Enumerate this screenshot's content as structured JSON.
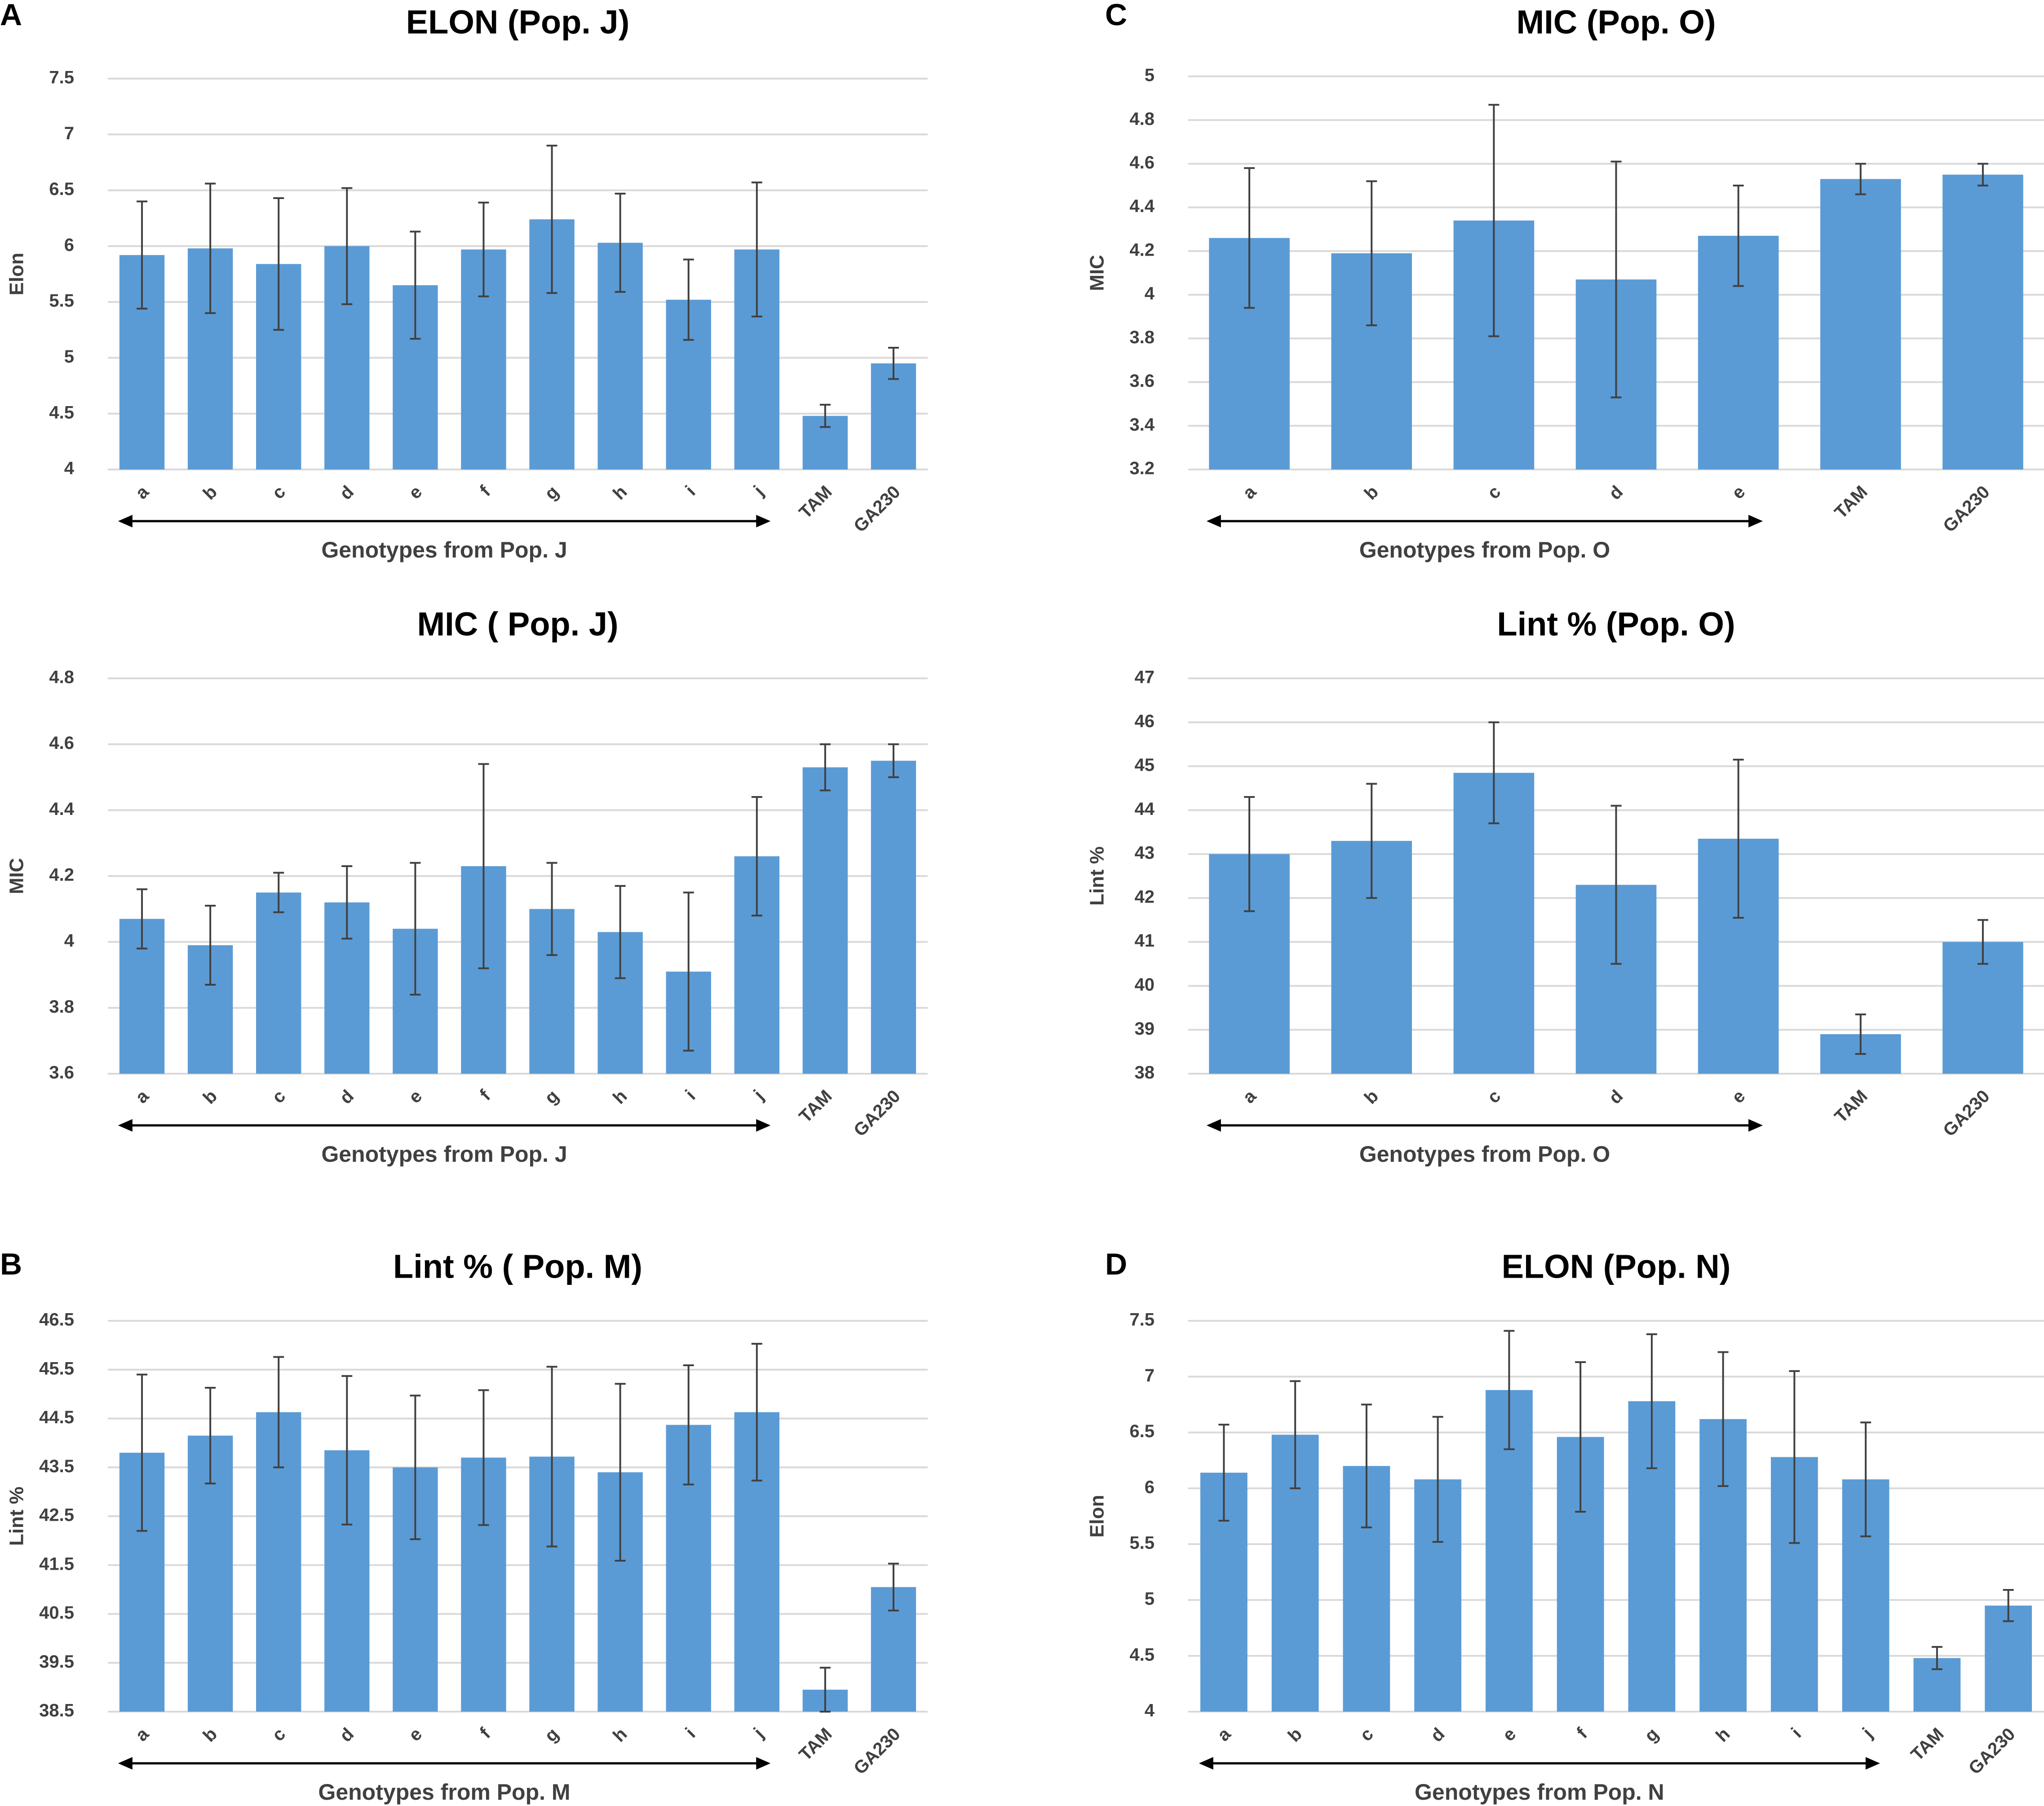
{
  "panel_labels": [
    "A",
    "B",
    "C",
    "D"
  ],
  "colors": {
    "bar": "#5B9BD5",
    "error_bar": "#404040",
    "grid": "#D9D9D9",
    "text": "#404040",
    "title": "#000000"
  },
  "chart_data": [
    {
      "type": "bar",
      "title": "ELON (Pop. J)",
      "ylabel": "Elon",
      "xlabel": "Genotypes from Pop. J",
      "categories": [
        "a",
        "b",
        "c",
        "d",
        "e",
        "f",
        "g",
        "h",
        "i",
        "j",
        "TAM",
        "GA230"
      ],
      "values": [
        5.92,
        5.98,
        5.84,
        6.0,
        5.65,
        5.97,
        6.24,
        6.03,
        5.52,
        5.97,
        4.48,
        4.95
      ],
      "errors": [
        0.48,
        0.58,
        0.59,
        0.52,
        0.48,
        0.42,
        0.66,
        0.44,
        0.36,
        0.6,
        0.1,
        0.14
      ],
      "ylim": [
        4,
        7.5
      ],
      "yticks": [
        "4",
        "4.5",
        "5",
        "5.5",
        "6",
        "6.5",
        "7",
        "7.5"
      ],
      "ytick_values": [
        4,
        4.5,
        5,
        5.5,
        6,
        6.5,
        7,
        7.5
      ],
      "arrow_span": 10
    },
    {
      "type": "bar",
      "title": "MIC ( Pop. J)",
      "ylabel": "MIC",
      "xlabel": "Genotypes from Pop. J",
      "categories": [
        "a",
        "b",
        "c",
        "d",
        "e",
        "f",
        "g",
        "h",
        "i",
        "j",
        "TAM",
        "GA230"
      ],
      "values": [
        4.07,
        3.99,
        4.15,
        4.12,
        4.04,
        4.23,
        4.1,
        4.03,
        3.91,
        4.26,
        4.53,
        4.55
      ],
      "errors": [
        0.09,
        0.12,
        0.06,
        0.11,
        0.2,
        0.31,
        0.14,
        0.14,
        0.24,
        0.18,
        0.07,
        0.05
      ],
      "ylim": [
        3.6,
        4.8
      ],
      "yticks": [
        "3.6",
        "3.8",
        "4",
        "4.2",
        "4.4",
        "4.6",
        "4.8"
      ],
      "ytick_values": [
        3.6,
        3.8,
        4.0,
        4.2,
        4.4,
        4.6,
        4.8
      ],
      "arrow_span": 10
    },
    {
      "type": "bar",
      "title": "Lint % ( Pop. M)",
      "ylabel": "Lint %",
      "xlabel": "Genotypes from Pop. M",
      "categories": [
        "a",
        "b",
        "c",
        "d",
        "e",
        "f",
        "g",
        "h",
        "i",
        "j",
        "TAM",
        "GA230"
      ],
      "values": [
        43.8,
        44.15,
        44.63,
        43.85,
        43.5,
        43.7,
        43.72,
        43.4,
        44.37,
        44.63,
        38.95,
        41.05
      ],
      "errors": [
        1.6,
        0.98,
        1.13,
        1.52,
        1.47,
        1.38,
        1.84,
        1.81,
        1.22,
        1.4,
        0.45,
        0.48
      ],
      "ylim": [
        38.5,
        46.5
      ],
      "yticks": [
        "38.5",
        "39.5",
        "40.5",
        "41.5",
        "42.5",
        "43.5",
        "44.5",
        "45.5",
        "46.5"
      ],
      "ytick_values": [
        38.5,
        39.5,
        40.5,
        41.5,
        42.5,
        43.5,
        44.5,
        45.5,
        46.5
      ],
      "arrow_span": 10
    },
    {
      "type": "bar",
      "title": "MIC (Pop. O)",
      "ylabel": "MIC",
      "xlabel": "Genotypes from Pop. O",
      "categories": [
        "a",
        "b",
        "c",
        "d",
        "e",
        "TAM",
        "GA230"
      ],
      "values": [
        4.26,
        4.19,
        4.34,
        4.07,
        4.27,
        4.53,
        4.55
      ],
      "errors": [
        0.32,
        0.33,
        0.53,
        0.54,
        0.23,
        0.07,
        0.05
      ],
      "ylim": [
        3.2,
        5
      ],
      "yticks": [
        "3.2",
        "3.4",
        "3.6",
        "3.8",
        "4",
        "4.2",
        "4.4",
        "4.6",
        "4.8",
        "5"
      ],
      "ytick_values": [
        3.2,
        3.4,
        3.6,
        3.8,
        4.0,
        4.2,
        4.4,
        4.6,
        4.8,
        5.0
      ],
      "arrow_span": 5
    },
    {
      "type": "bar",
      "title": "Lint % (Pop. O)",
      "ylabel": "Lint %",
      "xlabel": "Genotypes from Pop. O",
      "categories": [
        "a",
        "b",
        "c",
        "d",
        "e",
        "TAM",
        "GA230"
      ],
      "values": [
        43.0,
        43.3,
        44.85,
        42.3,
        43.35,
        38.9,
        41.0
      ],
      "errors": [
        1.3,
        1.3,
        1.15,
        1.8,
        1.8,
        0.45,
        0.5
      ],
      "ylim": [
        38,
        47
      ],
      "yticks": [
        "38",
        "39",
        "40",
        "41",
        "42",
        "43",
        "44",
        "45",
        "46",
        "47"
      ],
      "ytick_values": [
        38,
        39,
        40,
        41,
        42,
        43,
        44,
        45,
        46,
        47
      ],
      "arrow_span": 5
    },
    {
      "type": "bar",
      "title": "ELON (Pop. N)",
      "ylabel": "Elon",
      "xlabel": "Genotypes from Pop. N",
      "categories": [
        "a",
        "b",
        "c",
        "d",
        "e",
        "f",
        "g",
        "h",
        "i",
        "j",
        "TAM",
        "GA230"
      ],
      "values": [
        6.14,
        6.48,
        6.2,
        6.08,
        6.88,
        6.46,
        6.78,
        6.62,
        6.28,
        6.08,
        4.48,
        4.95
      ],
      "errors": [
        0.43,
        0.48,
        0.55,
        0.56,
        0.53,
        0.67,
        0.6,
        0.6,
        0.77,
        0.51,
        0.1,
        0.14
      ],
      "ylim": [
        4,
        7.5
      ],
      "yticks": [
        "4",
        "4.5",
        "5",
        "5.5",
        "6",
        "6.5",
        "7",
        "7.5"
      ],
      "ytick_values": [
        4,
        4.5,
        5,
        5.5,
        6,
        6.5,
        7,
        7.5
      ],
      "arrow_span": 10
    }
  ]
}
